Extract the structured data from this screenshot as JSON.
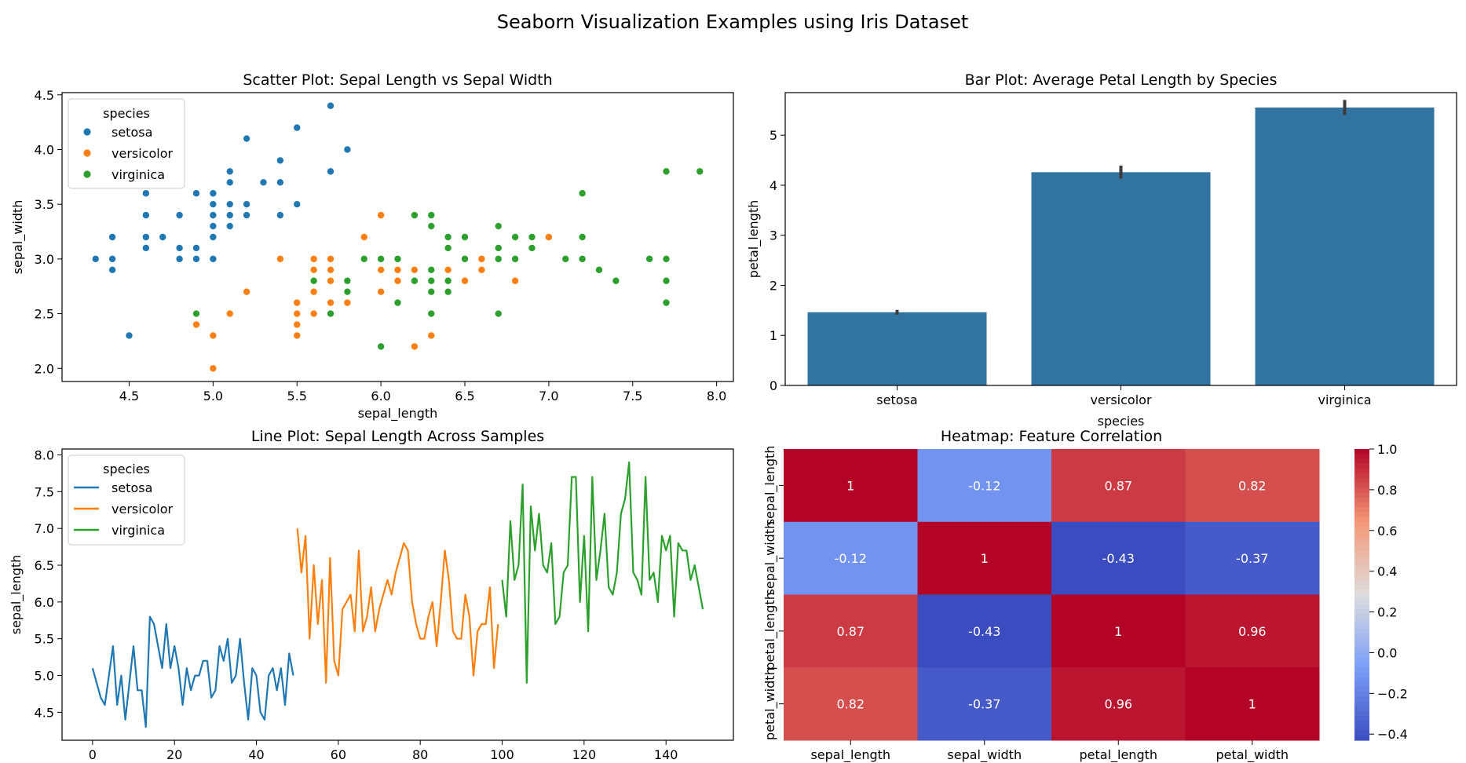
{
  "figure_title": "Seaborn Visualization Examples using Iris Dataset",
  "colors": {
    "setosa": "#1f77b4",
    "versicolor": "#ff7f0e",
    "virginica": "#2ca02c",
    "bar": "#3274a1",
    "errorbar": "#3b3b3b"
  },
  "chart_data": [
    {
      "type": "scatter",
      "title": "Scatter Plot: Sepal Length vs Sepal Width",
      "xlabel": "sepal_length",
      "ylabel": "sepal_width",
      "xlim": [
        4.1,
        8.1
      ],
      "ylim": [
        1.88,
        4.52
      ],
      "xticks": [
        "4.5",
        "5.0",
        "5.5",
        "6.0",
        "6.5",
        "7.0",
        "7.5",
        "8.0"
      ],
      "yticks": [
        "2.0",
        "2.5",
        "3.0",
        "3.5",
        "4.0",
        "4.5"
      ],
      "legend": {
        "title": "species",
        "placement": "upper-left",
        "entries": [
          "setosa",
          "versicolor",
          "virginica"
        ]
      },
      "series": [
        {
          "name": "setosa",
          "points": [
            [
              5.1,
              3.5
            ],
            [
              4.9,
              3.0
            ],
            [
              4.7,
              3.2
            ],
            [
              4.6,
              3.1
            ],
            [
              5.0,
              3.6
            ],
            [
              5.4,
              3.9
            ],
            [
              4.6,
              3.4
            ],
            [
              5.0,
              3.4
            ],
            [
              4.4,
              2.9
            ],
            [
              4.9,
              3.1
            ],
            [
              5.4,
              3.7
            ],
            [
              4.8,
              3.4
            ],
            [
              4.8,
              3.0
            ],
            [
              4.3,
              3.0
            ],
            [
              5.8,
              4.0
            ],
            [
              5.7,
              4.4
            ],
            [
              5.4,
              3.9
            ],
            [
              5.1,
              3.5
            ],
            [
              5.7,
              3.8
            ],
            [
              5.1,
              3.8
            ],
            [
              5.4,
              3.4
            ],
            [
              5.1,
              3.7
            ],
            [
              4.6,
              3.6
            ],
            [
              5.1,
              3.3
            ],
            [
              4.8,
              3.4
            ],
            [
              5.0,
              3.0
            ],
            [
              5.0,
              3.4
            ],
            [
              5.2,
              3.5
            ],
            [
              5.2,
              3.4
            ],
            [
              4.7,
              3.2
            ],
            [
              4.8,
              3.1
            ],
            [
              5.4,
              3.4
            ],
            [
              5.2,
              4.1
            ],
            [
              5.5,
              4.2
            ],
            [
              4.9,
              3.1
            ],
            [
              5.0,
              3.2
            ],
            [
              5.5,
              3.5
            ],
            [
              4.9,
              3.6
            ],
            [
              4.4,
              3.0
            ],
            [
              5.1,
              3.4
            ],
            [
              5.0,
              3.5
            ],
            [
              4.5,
              2.3
            ],
            [
              4.4,
              3.2
            ],
            [
              5.0,
              3.5
            ],
            [
              5.1,
              3.8
            ],
            [
              4.8,
              3.0
            ],
            [
              5.1,
              3.8
            ],
            [
              4.6,
              3.2
            ],
            [
              5.3,
              3.7
            ],
            [
              5.0,
              3.3
            ]
          ]
        },
        {
          "name": "versicolor",
          "points": [
            [
              7.0,
              3.2
            ],
            [
              6.4,
              3.2
            ],
            [
              6.9,
              3.1
            ],
            [
              5.5,
              2.3
            ],
            [
              6.5,
              2.8
            ],
            [
              5.7,
              2.8
            ],
            [
              6.3,
              3.3
            ],
            [
              4.9,
              2.4
            ],
            [
              6.6,
              2.9
            ],
            [
              5.2,
              2.7
            ],
            [
              5.0,
              2.0
            ],
            [
              5.9,
              3.0
            ],
            [
              6.0,
              2.2
            ],
            [
              6.1,
              2.9
            ],
            [
              5.6,
              2.9
            ],
            [
              6.7,
              3.1
            ],
            [
              5.6,
              3.0
            ],
            [
              5.8,
              2.7
            ],
            [
              6.2,
              2.2
            ],
            [
              5.6,
              2.5
            ],
            [
              5.9,
              3.2
            ],
            [
              6.1,
              2.8
            ],
            [
              6.3,
              2.5
            ],
            [
              6.1,
              2.8
            ],
            [
              6.4,
              2.9
            ],
            [
              6.6,
              3.0
            ],
            [
              6.8,
              2.8
            ],
            [
              6.7,
              3.0
            ],
            [
              6.0,
              2.9
            ],
            [
              5.7,
              2.6
            ],
            [
              5.5,
              2.4
            ],
            [
              5.5,
              2.4
            ],
            [
              5.8,
              2.7
            ],
            [
              6.0,
              2.7
            ],
            [
              5.4,
              3.0
            ],
            [
              6.0,
              3.4
            ],
            [
              6.7,
              3.1
            ],
            [
              6.3,
              2.3
            ],
            [
              5.6,
              3.0
            ],
            [
              5.5,
              2.5
            ],
            [
              5.5,
              2.6
            ],
            [
              6.1,
              3.0
            ],
            [
              5.8,
              2.6
            ],
            [
              5.0,
              2.3
            ],
            [
              5.6,
              2.7
            ],
            [
              5.7,
              3.0
            ],
            [
              5.7,
              2.9
            ],
            [
              6.2,
              2.9
            ],
            [
              5.1,
              2.5
            ],
            [
              5.7,
              2.8
            ]
          ]
        },
        {
          "name": "virginica",
          "points": [
            [
              6.3,
              3.3
            ],
            [
              5.8,
              2.7
            ],
            [
              7.1,
              3.0
            ],
            [
              6.3,
              2.9
            ],
            [
              6.5,
              3.0
            ],
            [
              7.6,
              3.0
            ],
            [
              4.9,
              2.5
            ],
            [
              7.3,
              2.9
            ],
            [
              6.7,
              2.5
            ],
            [
              7.2,
              3.6
            ],
            [
              6.5,
              3.2
            ],
            [
              6.4,
              2.7
            ],
            [
              6.8,
              3.0
            ],
            [
              5.7,
              2.5
            ],
            [
              5.8,
              2.8
            ],
            [
              6.4,
              3.2
            ],
            [
              6.5,
              3.0
            ],
            [
              7.7,
              3.8
            ],
            [
              7.7,
              2.6
            ],
            [
              6.0,
              2.2
            ],
            [
              6.9,
              3.2
            ],
            [
              5.6,
              2.8
            ],
            [
              7.7,
              2.8
            ],
            [
              6.3,
              2.7
            ],
            [
              6.7,
              3.3
            ],
            [
              7.2,
              3.2
            ],
            [
              6.2,
              2.8
            ],
            [
              6.1,
              3.0
            ],
            [
              6.4,
              2.8
            ],
            [
              7.2,
              3.0
            ],
            [
              7.4,
              2.8
            ],
            [
              7.9,
              3.8
            ],
            [
              6.4,
              2.8
            ],
            [
              6.3,
              2.8
            ],
            [
              6.1,
              2.6
            ],
            [
              7.7,
              3.0
            ],
            [
              6.3,
              3.4
            ],
            [
              6.4,
              3.1
            ],
            [
              6.0,
              3.0
            ],
            [
              6.9,
              3.1
            ],
            [
              6.7,
              3.1
            ],
            [
              6.9,
              3.1
            ],
            [
              5.8,
              2.7
            ],
            [
              6.8,
              3.2
            ],
            [
              6.7,
              3.3
            ],
            [
              6.7,
              3.0
            ],
            [
              6.3,
              2.5
            ],
            [
              6.5,
              3.0
            ],
            [
              6.2,
              3.4
            ],
            [
              5.9,
              3.0
            ]
          ]
        }
      ]
    },
    {
      "type": "bar",
      "title": "Bar Plot: Average Petal Length by Species",
      "xlabel": "species",
      "ylabel": "petal_length",
      "ylim": [
        0,
        5.85
      ],
      "yticks": [
        "0",
        "1",
        "2",
        "3",
        "4",
        "5"
      ],
      "categories": [
        "setosa",
        "versicolor",
        "virginica"
      ],
      "values": [
        1.462,
        4.26,
        5.552
      ],
      "error_low": [
        1.414,
        4.132,
        5.404
      ],
      "error_high": [
        1.51,
        4.392,
        5.704
      ]
    },
    {
      "type": "line",
      "title": "Line Plot: Sepal Length Across Samples",
      "xlabel": "",
      "ylabel": "sepal_length",
      "xlim": [
        -7.45,
        156.45
      ],
      "ylim": [
        4.12,
        8.08
      ],
      "xticks": [
        "0",
        "20",
        "40",
        "60",
        "80",
        "100",
        "120",
        "140"
      ],
      "yticks": [
        "4.5",
        "5.0",
        "5.5",
        "6.0",
        "6.5",
        "7.0",
        "7.5",
        "8.0"
      ],
      "legend": {
        "title": "species",
        "placement": "upper-left",
        "entries": [
          "setosa",
          "versicolor",
          "virginica"
        ]
      },
      "series": [
        {
          "name": "setosa",
          "x_start": 0,
          "values": [
            5.1,
            4.9,
            4.7,
            4.6,
            5.0,
            5.4,
            4.6,
            5.0,
            4.4,
            4.9,
            5.4,
            4.8,
            4.8,
            4.3,
            5.8,
            5.7,
            5.4,
            5.1,
            5.7,
            5.1,
            5.4,
            5.1,
            4.6,
            5.1,
            4.8,
            5.0,
            5.0,
            5.2,
            5.2,
            4.7,
            4.8,
            5.4,
            5.2,
            5.5,
            4.9,
            5.0,
            5.5,
            4.9,
            4.4,
            5.1,
            5.0,
            4.5,
            4.4,
            5.0,
            5.1,
            4.8,
            5.1,
            4.6,
            5.3,
            5.0
          ]
        },
        {
          "name": "versicolor",
          "x_start": 50,
          "values": [
            7.0,
            6.4,
            6.9,
            5.5,
            6.5,
            5.7,
            6.3,
            4.9,
            6.6,
            5.2,
            5.0,
            5.9,
            6.0,
            6.1,
            5.6,
            6.7,
            5.6,
            5.8,
            6.2,
            5.6,
            5.9,
            6.1,
            6.3,
            6.1,
            6.4,
            6.6,
            6.8,
            6.7,
            6.0,
            5.7,
            5.5,
            5.5,
            5.8,
            6.0,
            5.4,
            6.0,
            6.7,
            6.3,
            5.6,
            5.5,
            5.5,
            6.1,
            5.8,
            5.0,
            5.6,
            5.7,
            5.7,
            6.2,
            5.1,
            5.7
          ]
        },
        {
          "name": "virginica",
          "x_start": 100,
          "values": [
            6.3,
            5.8,
            7.1,
            6.3,
            6.5,
            7.6,
            4.9,
            7.3,
            6.7,
            7.2,
            6.5,
            6.4,
            6.8,
            5.7,
            5.8,
            6.4,
            6.5,
            7.7,
            7.7,
            6.0,
            6.9,
            5.6,
            7.7,
            6.3,
            6.7,
            7.2,
            6.2,
            6.1,
            6.4,
            7.2,
            7.4,
            7.9,
            6.4,
            6.3,
            6.1,
            7.7,
            6.3,
            6.4,
            6.0,
            6.9,
            6.7,
            6.9,
            5.8,
            6.8,
            6.7,
            6.7,
            6.3,
            6.5,
            6.2,
            5.9
          ]
        }
      ]
    },
    {
      "type": "heatmap",
      "title": "Heatmap: Feature Correlation",
      "rows": [
        "sepal_length",
        "sepal_width",
        "petal_length",
        "petal_width"
      ],
      "columns": [
        "sepal_length",
        "sepal_width",
        "petal_length",
        "petal_width"
      ],
      "values": [
        [
          1,
          -0.12,
          0.87,
          0.82
        ],
        [
          -0.12,
          1,
          -0.43,
          -0.37
        ],
        [
          0.87,
          -0.43,
          1,
          0.96
        ],
        [
          0.82,
          -0.37,
          0.96,
          1
        ]
      ],
      "labels": [
        [
          "1",
          "-0.12",
          "0.87",
          "0.82"
        ],
        [
          "-0.12",
          "1",
          "-0.43",
          "-0.37"
        ],
        [
          "0.87",
          "-0.43",
          "1",
          "0.96"
        ],
        [
          "0.82",
          "-0.37",
          "0.96",
          "1"
        ]
      ],
      "colormap": "coolwarm",
      "vmin": -0.43,
      "vmax": 1.0,
      "colorbar_ticks": [
        "1.0",
        "0.8",
        "0.6",
        "0.4",
        "0.2",
        "0.0",
        "−0.2",
        "−0.4"
      ]
    }
  ]
}
